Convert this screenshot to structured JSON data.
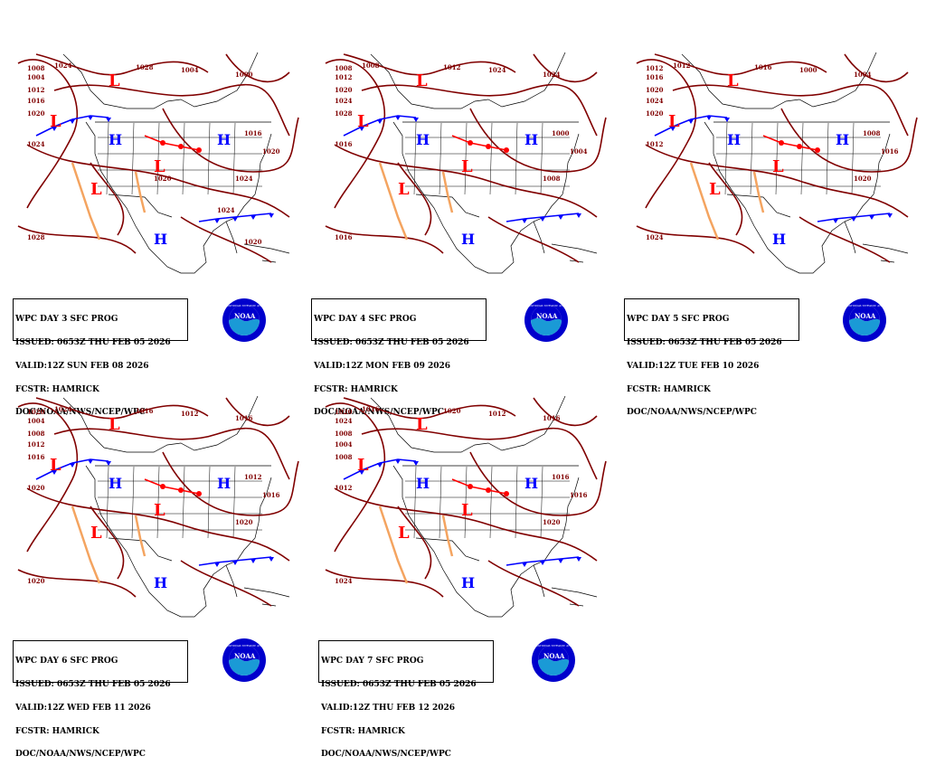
{
  "panels": [
    {
      "caption": [
        "WPC DAY 3 SFC PROG",
        "ISSUED: 0653Z THU FEB 05 2026",
        "VALID:12Z SUN FEB 08 2026",
        "FCSTR: HAMRICK",
        "DOC/NOAA/NWS/NCEP/WPC"
      ],
      "isobars": [
        "1008",
        "1004",
        "1012",
        "1016",
        "1020",
        "1024",
        "1024",
        "1028",
        "1004",
        "1000",
        "1016",
        "1020",
        "1024",
        "1028",
        "1020",
        "1020",
        "1024"
      ]
    },
    {
      "caption": [
        "WPC DAY 4 SFC PROG",
        "ISSUED: 0653Z THU FEB 05 2026",
        "VALID:12Z MON FEB 09 2026",
        "FCSTR: HAMRICK",
        "DOC/NOAA/NWS/NCEP/WPC"
      ],
      "isobars": [
        "1008",
        "1012",
        "1020",
        "1024",
        "1028",
        "1016",
        "1008",
        "1012",
        "1024",
        "1024",
        "1000",
        "1004",
        "1008",
        "1016"
      ]
    },
    {
      "caption": [
        "WPC DAY 5 SFC PROG",
        "ISSUED: 0653Z THU FEB 05 2026",
        "VALID:12Z TUE FEB 10 2026",
        "FCSTR: HAMRICK",
        "DOC/NOAA/NWS/NCEP/WPC"
      ],
      "isobars": [
        "1012",
        "1016",
        "1020",
        "1024",
        "1020",
        "1012",
        "1012",
        "1016",
        "1000",
        "1004",
        "1008",
        "1016",
        "1020",
        "1024"
      ]
    },
    {
      "caption": [
        "WPC DAY 6 SFC PROG",
        "ISSUED: 0653Z THU FEB 05 2026",
        "VALID:12Z WED FEB 11 2026",
        "FCSTR: HAMRICK",
        "DOC/NOAA/NWS/NCEP/WPC"
      ],
      "isobars": [
        "1020",
        "1004",
        "1008",
        "1012",
        "1016",
        "1020",
        "1024",
        "1016",
        "1012",
        "1016",
        "1012",
        "1016",
        "1020",
        "1020"
      ]
    },
    {
      "caption": [
        "WPC DAY 7 SFC PROG",
        "ISSUED: 0653Z THU FEB 05 2026",
        "VALID:12Z THU FEB 12 2026",
        "FCSTR: HAMRICK",
        "DOC/NOAA/NWS/NCEP/WPC"
      ],
      "isobars": [
        "1020",
        "1024",
        "1008",
        "1004",
        "1008",
        "1012",
        "1016",
        "1020",
        "1012",
        "1016",
        "1016",
        "1016",
        "1020",
        "1024"
      ]
    }
  ],
  "logo_text": "NOAA",
  "logo_ring_text": "NATIONAL OCEANIC AND ATMOSPHERIC ADMINISTRATION",
  "symbols": {
    "high": "H",
    "low": "L"
  },
  "colors": {
    "isobar": "#800000",
    "front_cold": "#0000ff",
    "front_warm": "#ff0000",
    "trough": "#f4a460",
    "high": "#0000ff",
    "low": "#ff0000",
    "occluded": "#800080"
  }
}
